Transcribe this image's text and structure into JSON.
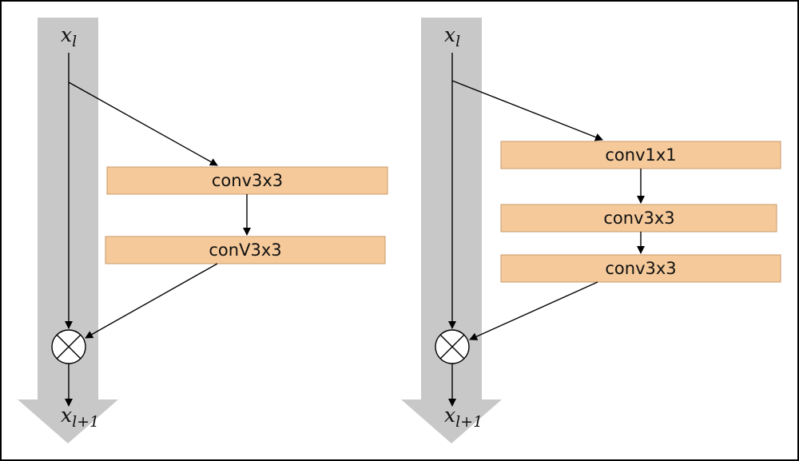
{
  "colors": {
    "skip_path": "#c8c8c8",
    "block_fill": "#f5c99a",
    "block_stroke": "#c89a6a",
    "line": "#000000",
    "frame": "#000000"
  },
  "left_block": {
    "input_var": "x",
    "input_sub": "l",
    "layers": [
      "conv3x3",
      "conV3x3"
    ],
    "operator_symbol": "⊗",
    "output_var": "x",
    "output_sub": "l+1"
  },
  "right_block": {
    "input_var": "x",
    "input_sub": "l",
    "layers": [
      "conv1x1",
      "conv3x3",
      "conv3x3"
    ],
    "operator_symbol": "⊗",
    "output_var": "x",
    "output_sub": "l+1"
  }
}
